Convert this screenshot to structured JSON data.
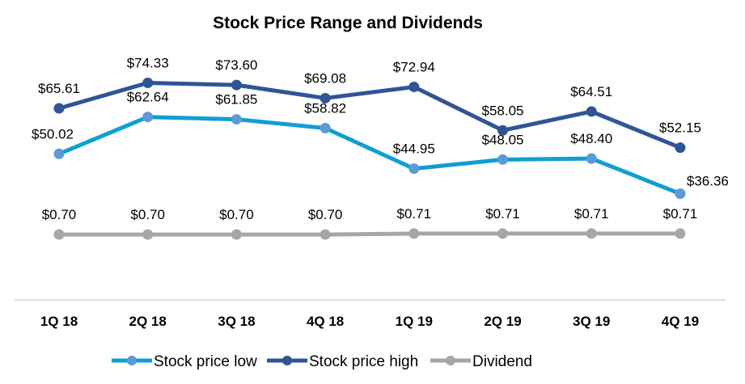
{
  "chart_data": {
    "type": "line",
    "title": "Stock Price Range and Dividends",
    "categories": [
      "1Q 18",
      "2Q 18",
      "3Q 18",
      "4Q 18",
      "1Q 19",
      "2Q 19",
      "3Q 19",
      "4Q 19"
    ],
    "ylim": [
      0,
      80
    ],
    "y2lim": [
      0,
      2.5
    ],
    "grid": false,
    "legend": "bottom",
    "series": [
      {
        "name": "Stock price low",
        "axis": "primary",
        "line_color": "#0f9ed5",
        "marker_color": "#5b9bd5",
        "values": [
          50.02,
          62.64,
          61.85,
          58.82,
          44.95,
          48.05,
          48.4,
          36.36
        ],
        "labels": [
          "$50.02",
          "$62.64",
          "$61.85",
          "$58.82",
          "$44.95",
          "$48.05",
          "$48.40",
          "$36.36"
        ]
      },
      {
        "name": "Stock price high",
        "axis": "primary",
        "line_color": "#2f5597",
        "marker_color": "#2f5597",
        "values": [
          65.61,
          74.33,
          73.6,
          69.08,
          72.94,
          58.05,
          64.51,
          52.15
        ],
        "labels": [
          "$65.61",
          "$74.33",
          "$73.60",
          "$69.08",
          "$72.94",
          "$58.05",
          "$64.51",
          "$52.15"
        ]
      },
      {
        "name": "Dividend",
        "axis": "secondary",
        "line_color": "#a6a6a6",
        "marker_color": "#a6a6a6",
        "values": [
          0.7,
          0.7,
          0.7,
          0.7,
          0.71,
          0.71,
          0.71,
          0.71
        ],
        "labels": [
          "$0.70",
          "$0.70",
          "$0.70",
          "$0.70",
          "$0.71",
          "$0.71",
          "$0.71",
          "$0.71"
        ]
      }
    ]
  }
}
